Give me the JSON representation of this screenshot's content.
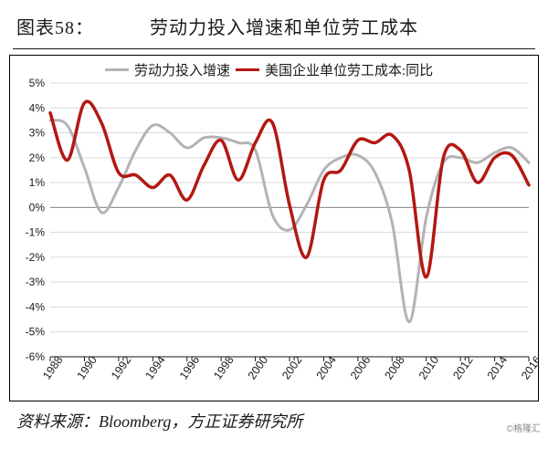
{
  "header": {
    "figure_label": "图表58：",
    "title": "劳动力投入增速和单位劳工成本"
  },
  "source": {
    "label": "资料来源：Bloomberg，方正证券研究所"
  },
  "watermark": "©格隆汇",
  "chart": {
    "type": "line",
    "background_color": "#ffffff",
    "border_color": "#000000",
    "grid_color": "#d9d9d9",
    "axis_color": "#1a1a1a",
    "ylim": [
      -6,
      5
    ],
    "ytick_step": 1,
    "ytick_suffix": "%",
    "x_years": [
      1988,
      1989,
      1990,
      1991,
      1992,
      1993,
      1994,
      1995,
      1996,
      1997,
      1998,
      1999,
      2000,
      2001,
      2002,
      2003,
      2004,
      2005,
      2006,
      2007,
      2008,
      2009,
      2010,
      2011,
      2012,
      2013,
      2014,
      2015,
      2016
    ],
    "xtick_years": [
      1988,
      1990,
      1992,
      1994,
      1996,
      1998,
      2000,
      2002,
      2004,
      2006,
      2008,
      2010,
      2012,
      2014,
      2016
    ],
    "xtick_label_rotate": -55,
    "label_fontsize": 12,
    "legend": {
      "position": "top",
      "fontsize": 15,
      "items": [
        {
          "label": "劳动力投入增速",
          "color": "#b3b3b3",
          "line_width": 3
        },
        {
          "label": "美国企业单位劳工成本:同比",
          "color": "#b31812",
          "line_width": 3.5
        }
      ]
    },
    "series": [
      {
        "name": "劳动力投入增速",
        "color": "#b3b3b3",
        "line_width": 3,
        "values": [
          3.5,
          3.3,
          1.6,
          -0.2,
          0.8,
          2.3,
          3.3,
          3.0,
          2.4,
          2.8,
          2.8,
          2.6,
          2.3,
          -0.3,
          -0.9,
          0.1,
          1.5,
          2.0,
          2.1,
          1.4,
          -0.6,
          -4.6,
          -0.4,
          1.8,
          2.0,
          1.8,
          2.2,
          2.4,
          1.8
        ]
      },
      {
        "name": "美国企业单位劳工成本:同比",
        "color": "#b31812",
        "line_width": 3.5,
        "values": [
          3.8,
          1.9,
          4.2,
          3.4,
          1.4,
          1.3,
          0.8,
          1.3,
          0.3,
          1.7,
          2.7,
          1.1,
          2.6,
          3.4,
          0.1,
          -2.0,
          1.1,
          1.5,
          2.7,
          2.6,
          2.9,
          1.5,
          -2.8,
          2.0,
          2.3,
          1.0,
          2.0,
          2.1,
          0.9
        ]
      }
    ]
  }
}
